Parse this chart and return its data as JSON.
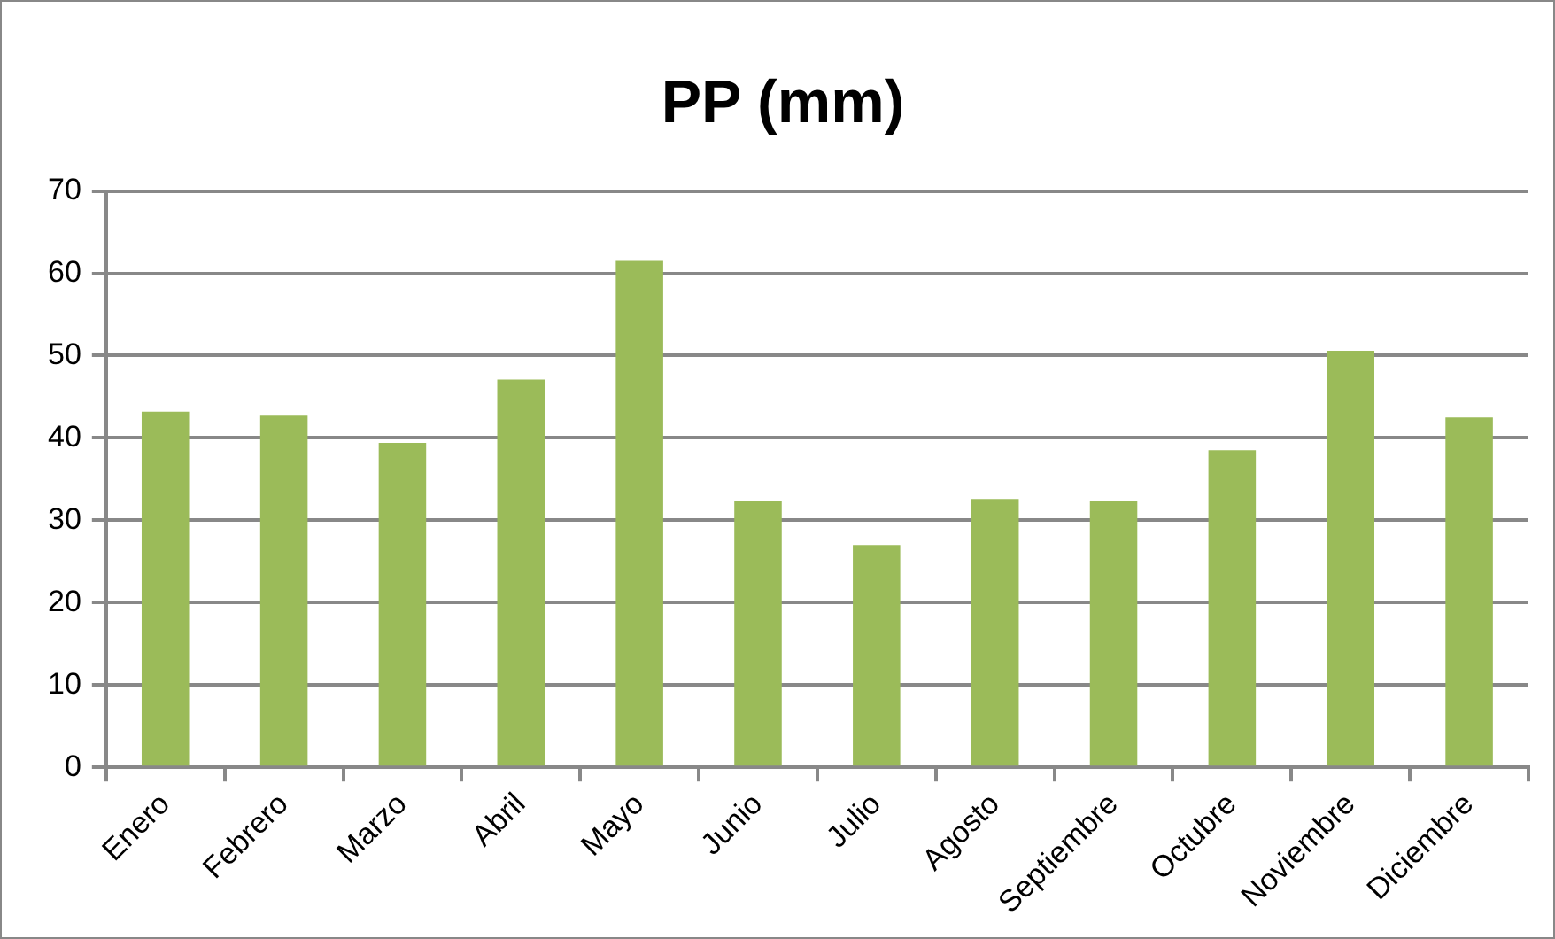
{
  "chart_data": {
    "type": "bar",
    "title": "PP (mm)",
    "categories": [
      "Enero",
      "Febrero",
      "Marzo",
      "Abril",
      "Mayo",
      "Junio",
      "Julio",
      "Agosto",
      "Septiembre",
      "Octubre",
      "Noviembre",
      "Diciembre"
    ],
    "values": [
      43.2,
      42.7,
      39.4,
      47.1,
      61.5,
      32.4,
      27.0,
      32.6,
      32.3,
      38.5,
      50.6,
      42.5
    ],
    "color": "#9bbb59",
    "ylim": [
      0,
      70
    ],
    "yticks": [
      0,
      10,
      20,
      30,
      40,
      50,
      60,
      70
    ],
    "grid": "y",
    "legend": false
  }
}
